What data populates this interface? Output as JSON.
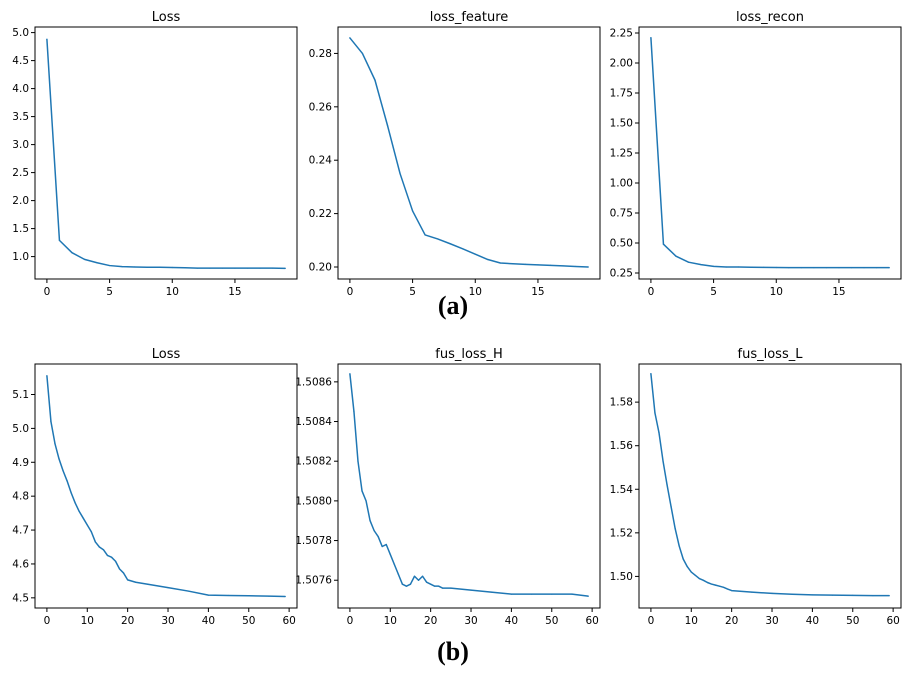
{
  "captions": {
    "a": "(a)",
    "b": "(b)"
  },
  "colors": {
    "line": "#1f77b4",
    "axes": "#000000"
  },
  "chart_data": [
    {
      "type": "line",
      "title": "Loss",
      "xlabel": "",
      "ylabel": "",
      "xlim": [
        -0.95,
        19.95
      ],
      "ylim": [
        0.6,
        5.1
      ],
      "xticks": [
        0,
        5,
        10,
        15
      ],
      "xtick_labels": [
        "0",
        "5",
        "10",
        "15"
      ],
      "yticks": [
        1.0,
        1.5,
        2.0,
        2.5,
        3.0,
        3.5,
        4.0,
        4.5,
        5.0
      ],
      "ytick_labels": [
        "1.0",
        "1.5",
        "2.0",
        "2.5",
        "3.0",
        "3.5",
        "4.0",
        "4.5",
        "5.0"
      ],
      "x": [
        0,
        1,
        2,
        3,
        4,
        5,
        6,
        7,
        8,
        9,
        10,
        11,
        12,
        13,
        14,
        15,
        16,
        17,
        18,
        19
      ],
      "y": [
        4.88,
        1.29,
        1.07,
        0.95,
        0.89,
        0.84,
        0.82,
        0.815,
        0.81,
        0.81,
        0.805,
        0.8,
        0.795,
        0.795,
        0.795,
        0.795,
        0.795,
        0.795,
        0.795,
        0.79
      ]
    },
    {
      "type": "line",
      "title": "loss_feature",
      "xlabel": "",
      "ylabel": "",
      "xlim": [
        -0.95,
        19.95
      ],
      "ylim": [
        0.1955,
        0.2899
      ],
      "xticks": [
        0,
        5,
        10,
        15
      ],
      "xtick_labels": [
        "0",
        "5",
        "10",
        "15"
      ],
      "yticks": [
        0.2,
        0.22,
        0.24,
        0.26,
        0.28
      ],
      "ytick_labels": [
        "0.20",
        "0.22",
        "0.24",
        "0.26",
        "0.28"
      ],
      "x": [
        0,
        1,
        2,
        3,
        4,
        5,
        6,
        7,
        8,
        9,
        10,
        11,
        12,
        13,
        14,
        15,
        16,
        17,
        18,
        19
      ],
      "y": [
        0.2858,
        0.28,
        0.27,
        0.253,
        0.235,
        0.221,
        0.212,
        0.2105,
        0.2087,
        0.2068,
        0.2048,
        0.2028,
        0.2015,
        0.2012,
        0.201,
        0.2008,
        0.2006,
        0.2004,
        0.2002,
        0.2
      ]
    },
    {
      "type": "line",
      "title": "loss_recon",
      "xlabel": "",
      "ylabel": "",
      "xlim": [
        -0.95,
        19.95
      ],
      "ylim": [
        0.2,
        2.3
      ],
      "xticks": [
        0,
        5,
        10,
        15
      ],
      "xtick_labels": [
        "0",
        "5",
        "10",
        "15"
      ],
      "yticks": [
        0.25,
        0.5,
        0.75,
        1.0,
        1.25,
        1.5,
        1.75,
        2.0,
        2.25
      ],
      "ytick_labels": [
        "0.25",
        "0.50",
        "0.75",
        "1.00",
        "1.25",
        "1.50",
        "1.75",
        "2.00",
        "2.25"
      ],
      "x": [
        0,
        1,
        2,
        3,
        4,
        5,
        6,
        7,
        8,
        9,
        10,
        11,
        12,
        13,
        14,
        15,
        16,
        17,
        18,
        19
      ],
      "y": [
        2.21,
        0.49,
        0.39,
        0.34,
        0.32,
        0.305,
        0.3,
        0.3,
        0.298,
        0.297,
        0.296,
        0.295,
        0.295,
        0.295,
        0.295,
        0.295,
        0.295,
        0.295,
        0.295,
        0.295
      ]
    },
    {
      "type": "line",
      "title": "Loss",
      "xlabel": "",
      "ylabel": "",
      "xlim": [
        -2.95,
        61.95
      ],
      "ylim": [
        4.47,
        5.19
      ],
      "xticks": [
        0,
        10,
        20,
        30,
        40,
        50,
        60
      ],
      "xtick_labels": [
        "0",
        "10",
        "20",
        "30",
        "40",
        "50",
        "60"
      ],
      "yticks": [
        4.5,
        4.6,
        4.7,
        4.8,
        4.9,
        5.0,
        5.1
      ],
      "ytick_labels": [
        "4.5",
        "4.6",
        "4.7",
        "4.8",
        "4.9",
        "5.0",
        "5.1"
      ],
      "x": [
        0,
        1,
        2,
        3,
        4,
        5,
        6,
        7,
        8,
        9,
        10,
        11,
        12,
        13,
        14,
        15,
        16,
        17,
        18,
        19,
        20,
        22,
        25,
        30,
        35,
        40,
        45,
        50,
        55,
        59
      ],
      "y": [
        5.155,
        5.02,
        4.955,
        4.91,
        4.875,
        4.845,
        4.81,
        4.78,
        4.755,
        4.735,
        4.715,
        4.695,
        4.665,
        4.65,
        4.642,
        4.625,
        4.62,
        4.608,
        4.585,
        4.573,
        4.553,
        4.546,
        4.54,
        4.53,
        4.52,
        4.508,
        4.507,
        4.506,
        4.505,
        4.504
      ]
    },
    {
      "type": "line",
      "title": "fus_loss_H",
      "xlabel": "",
      "ylabel": "",
      "xlim": [
        -2.95,
        61.95
      ],
      "ylim": [
        1.50746,
        1.50869
      ],
      "xticks": [
        0,
        10,
        20,
        30,
        40,
        50,
        60
      ],
      "xtick_labels": [
        "0",
        "10",
        "20",
        "30",
        "40",
        "50",
        "60"
      ],
      "yticks": [
        1.5076,
        1.5078,
        1.508,
        1.5082,
        1.5084,
        1.5086
      ],
      "ytick_labels": [
        "1.5076",
        "1.5078",
        "1.5080",
        "1.5082",
        "1.5084",
        "1.5086"
      ],
      "x": [
        0,
        1,
        2,
        3,
        4,
        5,
        6,
        7,
        8,
        9,
        10,
        11,
        12,
        13,
        14,
        15,
        16,
        17,
        18,
        19,
        20,
        21,
        22,
        23,
        25,
        30,
        35,
        40,
        45,
        50,
        55,
        59
      ],
      "y": [
        1.50864,
        1.50845,
        1.5082,
        1.50805,
        1.508,
        1.5079,
        1.50785,
        1.50782,
        1.50777,
        1.50778,
        1.50773,
        1.50768,
        1.50763,
        1.50758,
        1.50757,
        1.50758,
        1.50762,
        1.5076,
        1.50762,
        1.50759,
        1.50758,
        1.50757,
        1.50757,
        1.50756,
        1.50756,
        1.50755,
        1.50754,
        1.50753,
        1.50753,
        1.50753,
        1.50753,
        1.50752
      ]
    },
    {
      "type": "line",
      "title": "fus_loss_L",
      "xlabel": "",
      "ylabel": "",
      "xlim": [
        -2.95,
        61.95
      ],
      "ylim": [
        1.4855,
        1.5975
      ],
      "xticks": [
        0,
        10,
        20,
        30,
        40,
        50,
        60
      ],
      "xtick_labels": [
        "0",
        "10",
        "20",
        "30",
        "40",
        "50",
        "60"
      ],
      "yticks": [
        1.5,
        1.52,
        1.54,
        1.56,
        1.58
      ],
      "ytick_labels": [
        "1.50",
        "1.52",
        "1.54",
        "1.56",
        "1.58"
      ],
      "x": [
        0,
        1,
        2,
        3,
        4,
        5,
        6,
        7,
        8,
        9,
        10,
        11,
        12,
        13,
        14,
        15,
        16,
        17,
        18,
        19,
        20,
        25,
        30,
        35,
        40,
        45,
        50,
        55,
        59
      ],
      "y": [
        1.593,
        1.575,
        1.566,
        1.553,
        1.542,
        1.532,
        1.522,
        1.514,
        1.508,
        1.5045,
        1.502,
        1.5005,
        1.499,
        1.4982,
        1.4972,
        1.4965,
        1.496,
        1.4955,
        1.495,
        1.4942,
        1.4935,
        1.4928,
        1.4922,
        1.4918,
        1.4915,
        1.4914,
        1.4913,
        1.4912,
        1.4912
      ]
    }
  ]
}
